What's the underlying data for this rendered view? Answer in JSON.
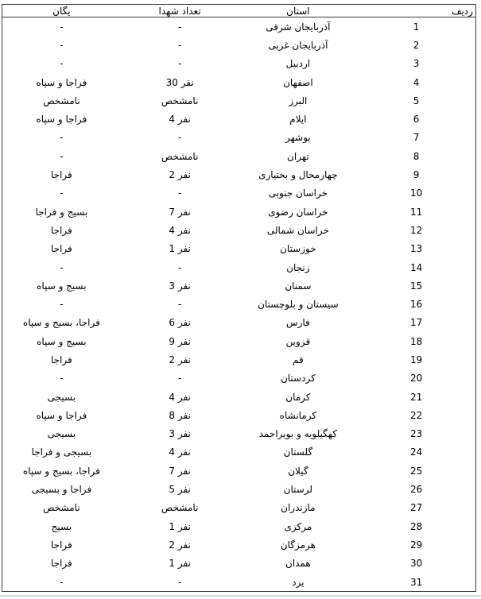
{
  "colors": {
    "border": "#3a3a3a",
    "bottom_rule": "#cfdeee",
    "background": "#ffffff",
    "text": "#000000"
  },
  "table": {
    "direction": "rtl-content",
    "columns": [
      {
        "key": "yegan",
        "label": "یگان"
      },
      {
        "key": "tedad",
        "label": "تعداد شهدا"
      },
      {
        "key": "ostan",
        "label": "استان"
      },
      {
        "key": "radif",
        "label": "ردیف"
      }
    ],
    "rows": [
      {
        "radif": "1",
        "ostan": "آذربایجان شرقی",
        "tedad": "-",
        "yegan": "-"
      },
      {
        "radif": "2",
        "ostan": "آذربایجان غربی",
        "tedad": "-",
        "yegan": "-"
      },
      {
        "radif": "3",
        "ostan": "اردبیل",
        "tedad": "-",
        "yegan": "-"
      },
      {
        "radif": "4",
        "ostan": "اصفهان",
        "tedad": "30 نفر",
        "yegan": "فراجا و سپاه"
      },
      {
        "radif": "5",
        "ostan": "البرز",
        "tedad": "نامشخص",
        "yegan": "نامشخص"
      },
      {
        "radif": "6",
        "ostan": "ایلام",
        "tedad": "4 نفر",
        "yegan": "فراجا و سپاه"
      },
      {
        "radif": "7",
        "ostan": "بوشهر",
        "tedad": "-",
        "yegan": "-"
      },
      {
        "radif": "8",
        "ostan": "تهران",
        "tedad": "نامشخص",
        "yegan": "-"
      },
      {
        "radif": "9",
        "ostan": "چهارمحال و بختیاری",
        "tedad": "2 نفر",
        "yegan": "فراجا"
      },
      {
        "radif": "10",
        "ostan": "خراسان جنوبی",
        "tedad": "-",
        "yegan": "-"
      },
      {
        "radif": "11",
        "ostan": "خراسان رضوی",
        "tedad": "7 نفر",
        "yegan": "بسیج و فراجا"
      },
      {
        "radif": "12",
        "ostan": "خراسان شمالی",
        "tedad": "4 نفر",
        "yegan": "فراجا"
      },
      {
        "radif": "13",
        "ostan": "خوزستان",
        "tedad": "1 نفر",
        "yegan": "فراجا"
      },
      {
        "radif": "14",
        "ostan": "زنجان",
        "tedad": "-",
        "yegan": "-"
      },
      {
        "radif": "15",
        "ostan": "سمنان",
        "tedad": "3 نفر",
        "yegan": "بسیج و سپاه"
      },
      {
        "radif": "16",
        "ostan": "سیستان و بلوچستان",
        "tedad": "-",
        "yegan": "-"
      },
      {
        "radif": "17",
        "ostan": "فارس",
        "tedad": "6 نفر",
        "yegan": "فراجا، بسیج و سپاه"
      },
      {
        "radif": "18",
        "ostan": "قزوین",
        "tedad": "9 نفر",
        "yegan": "بسیج و سپاه"
      },
      {
        "radif": "19",
        "ostan": "قم",
        "tedad": "2 نفر",
        "yegan": "فراجا"
      },
      {
        "radif": "20",
        "ostan": "کردستان",
        "tedad": "-",
        "yegan": "-"
      },
      {
        "radif": "21",
        "ostan": "کرمان",
        "tedad": "4 نفر",
        "yegan": "بسیجی"
      },
      {
        "radif": "22",
        "ostan": "کرمانشاه",
        "tedad": "8 نفر",
        "yegan": "فراجا و سپاه"
      },
      {
        "radif": "23",
        "ostan": "کهگیلویه و بویراحمد",
        "tedad": "3 نفر",
        "yegan": "بسیجی"
      },
      {
        "radif": "24",
        "ostan": "گلستان",
        "tedad": "4 نفر",
        "yegan": "بسیجی و فراجا"
      },
      {
        "radif": "25",
        "ostan": "گیلان",
        "tedad": "7 نفر",
        "yegan": "فراجا، بسیج و سپاه"
      },
      {
        "radif": "26",
        "ostan": "لرستان",
        "tedad": "5 نفر",
        "yegan": "فراجا و بسیجی"
      },
      {
        "radif": "27",
        "ostan": "مازندران",
        "tedad": "نامشخص",
        "yegan": "نامشخص"
      },
      {
        "radif": "28",
        "ostan": "مرکزی",
        "tedad": "1 نفر",
        "yegan": "بسیج"
      },
      {
        "radif": "29",
        "ostan": "هرمزگان",
        "tedad": "2 نفر",
        "yegan": "فراجا"
      },
      {
        "radif": "30",
        "ostan": "همدان",
        "tedad": "1 نفر",
        "yegan": "فراجا"
      },
      {
        "radif": "31",
        "ostan": "یزد",
        "tedad": "-",
        "yegan": "-"
      }
    ]
  }
}
